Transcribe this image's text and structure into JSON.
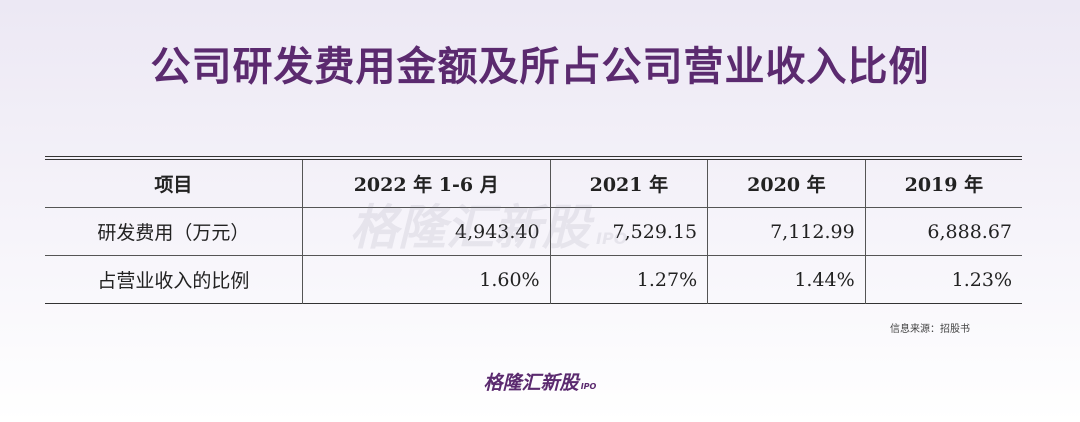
{
  "title": "公司研发费用金额及所占公司营业收入比例",
  "table": {
    "header": [
      "项目",
      "2022 年 1-6 月",
      "2021 年",
      "2020 年",
      "2019 年"
    ],
    "rows": [
      [
        "研发费用（万元）",
        "4,943.40",
        "7,529.15",
        "7,112.99",
        "6,888.67"
      ],
      [
        "占营业收入的比例",
        "1.60%",
        "1.27%",
        "1.44%",
        "1.23%"
      ]
    ]
  },
  "source": "信息来源：招股书",
  "watermark": {
    "name": "格隆汇新股",
    "suffix": "IPO"
  },
  "brand": {
    "name": "格隆汇新股",
    "suffix": "IPO"
  }
}
